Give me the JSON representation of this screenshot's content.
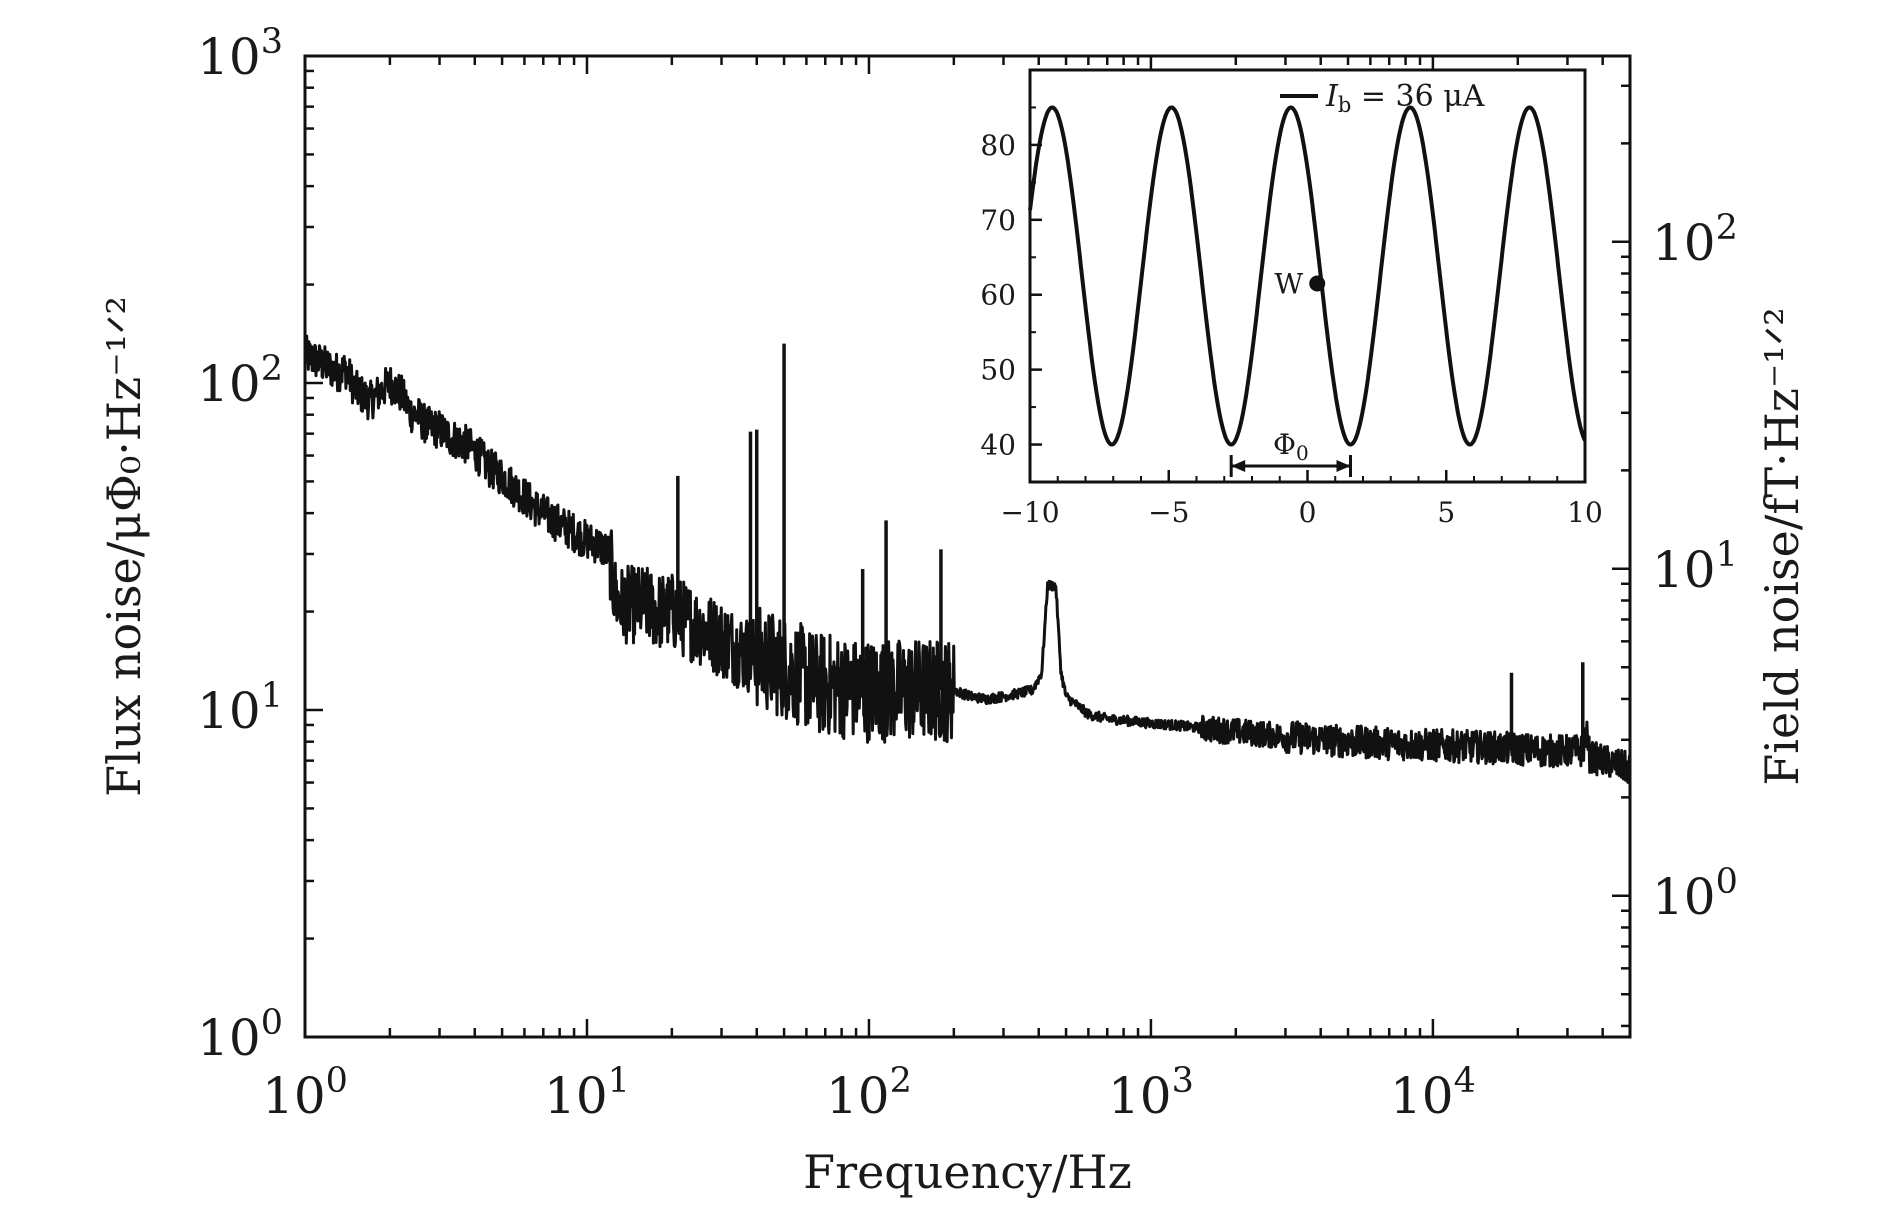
{
  "chart_data": [
    {
      "type": "line",
      "title": "",
      "xlabel": "Frequency/Hz",
      "ylabel": "Flux noise/μΦ₀·Hz⁻¹ᐟ²",
      "y2label": "Field noise/fT·Hz⁻¹ᐟ²",
      "xscale": "log",
      "yscale": "log",
      "xlim": [
        1,
        50000
      ],
      "ylim": [
        1,
        1000
      ],
      "y2lim": [
        0.37,
        370
      ],
      "x_tick_labels": [
        {
          "value": 1,
          "base": "10",
          "exp": "0"
        },
        {
          "value": 10,
          "base": "10",
          "exp": "1"
        },
        {
          "value": 100,
          "base": "10",
          "exp": "2"
        },
        {
          "value": 1000,
          "base": "10",
          "exp": "3"
        },
        {
          "value": 10000,
          "base": "10",
          "exp": "4"
        }
      ],
      "y_tick_labels": [
        {
          "value": 1,
          "base": "10",
          "exp": "0"
        },
        {
          "value": 10,
          "base": "10",
          "exp": "1"
        },
        {
          "value": 100,
          "base": "10",
          "exp": "2"
        },
        {
          "value": 1000,
          "base": "10",
          "exp": "3"
        }
      ],
      "y2_tick_labels": [
        {
          "value": 1,
          "base": "10",
          "exp": "0"
        },
        {
          "value": 10,
          "base": "10",
          "exp": "1"
        },
        {
          "value": 100,
          "base": "10",
          "exp": "2"
        }
      ],
      "grid": false,
      "color": "#111111",
      "series": [
        {
          "name": "",
          "x": [
            1.0,
            1.1,
            1.3,
            1.4,
            1.5,
            1.7,
            1.8,
            2.0,
            2.2,
            2.4,
            2.5,
            2.7,
            3.0,
            3.3,
            3.6,
            4.0,
            4.5,
            5.0,
            5.5,
            6.0,
            6.5,
            7.0,
            8.0,
            9.0,
            10.0,
            11.0,
            12.0,
            12.5,
            13.0,
            14.0,
            16.0,
            18.0,
            20.0,
            22.0,
            25.0,
            28.0,
            32.0,
            36.0,
            40.0,
            45.0,
            50.0,
            55.0,
            60.0,
            65.0,
            70.0,
            80.0,
            90.0,
            100.0,
            120.0,
            150.0,
            180.0,
            200.0,
            230.0,
            260.0,
            300.0,
            350.0,
            380.0,
            410.0,
            430.0,
            460.0,
            480.0,
            500.0,
            550.0,
            600.0,
            700.0,
            800.0,
            900.0,
            1000.0,
            1200.0,
            1500.0,
            2000.0,
            3000.0,
            5000.0,
            7000.0,
            10000.0,
            15000.0,
            20000.0,
            25000.0,
            30000.0,
            34000.0,
            35000.0,
            36000.0,
            40000.0,
            45000.0,
            50000.0
          ],
          "y": [
            122,
            117,
            108,
            110,
            96,
            88,
            92,
            100,
            92,
            80,
            80,
            74,
            72,
            68,
            66,
            62,
            55,
            52,
            48,
            45,
            42,
            40,
            37,
            35,
            33,
            32,
            30,
            23,
            21,
            21,
            21,
            20,
            20,
            19,
            18,
            17,
            16,
            15,
            14.5,
            14,
            13.5,
            13,
            12.5,
            12,
            12,
            11.8,
            11.5,
            11.5,
            11.5,
            11.5,
            11.5,
            11.5,
            11.0,
            10.8,
            11.0,
            11.3,
            11.5,
            13,
            24,
            24,
            13,
            11,
            10.3,
            9.7,
            9.4,
            9.3,
            9.2,
            9.1,
            9.0,
            8.8,
            8.6,
            8.3,
            8.0,
            7.9,
            7.8,
            7.7,
            7.6,
            7.5,
            7.5,
            7.5,
            8.5,
            7.2,
            7.0,
            6.8,
            6.6
          ]
        }
      ],
      "spikes": [
        {
          "x": 21,
          "y": 52
        },
        {
          "x": 38,
          "y": 71
        },
        {
          "x": 40,
          "y": 72
        },
        {
          "x": 50,
          "y": 132
        },
        {
          "x": 95,
          "y": 27
        },
        {
          "x": 115,
          "y": 38
        },
        {
          "x": 180,
          "y": 31
        },
        {
          "x": 19000,
          "y": 13
        },
        {
          "x": 34000,
          "y": 14
        }
      ]
    },
    {
      "type": "line",
      "title": "",
      "xlabel": "",
      "ylabel": "",
      "xlim": [
        -10,
        10
      ],
      "ylim": [
        35,
        90
      ],
      "x_ticks": [
        -10,
        -5,
        0,
        5,
        10
      ],
      "x_tick_labels": [
        "−10",
        "−5",
        "0",
        "5",
        "10"
      ],
      "y_ticks": [
        40,
        50,
        60,
        70,
        80
      ],
      "y_tick_labels": [
        "40",
        "50",
        "60",
        "70",
        "80"
      ],
      "legend_position": "top-right",
      "series": [
        {
          "name": "I_b = 36 μA",
          "legend_symbol": "I",
          "legend_subscript": "b",
          "legend_text": " = 36 μA",
          "function": "cosine",
          "center": 62.5,
          "amplitude": 22.5,
          "period_phi": 4.3,
          "peak_at": -0.6,
          "x_start": -10,
          "x_end": 10
        }
      ],
      "annotations": [
        {
          "label": "W",
          "x": 0.35,
          "y": 61.5
        },
        {
          "label": "Φ",
          "subscript": "0",
          "x_from": -2.75,
          "x_to": 1.55,
          "y": 39
        }
      ]
    }
  ]
}
